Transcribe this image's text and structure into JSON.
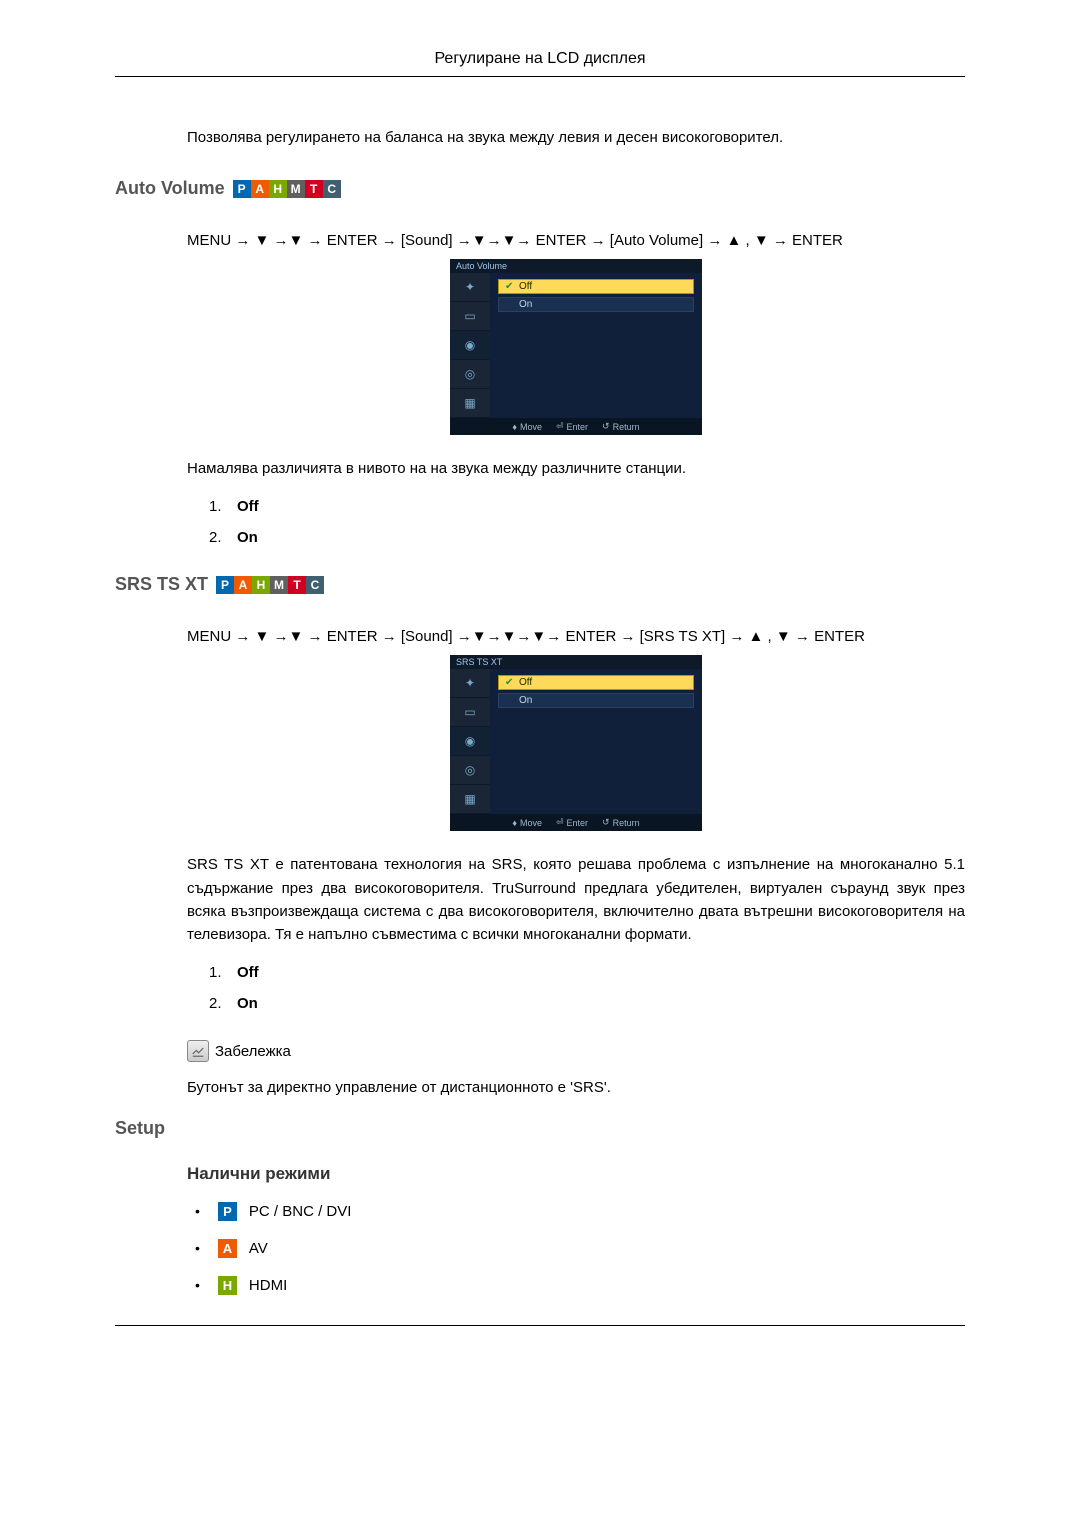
{
  "header": {
    "title": "Регулиране на LCD дисплея"
  },
  "intro": "Позволява регулирането на баланса на звука между левия и десен високоговорител.",
  "badges": {
    "P": "#0068b0",
    "A": "#f05a00",
    "H": "#7aa800",
    "M": "#606060",
    "T": "#d00020",
    "C": "#406070"
  },
  "section1": {
    "title": "Auto Volume",
    "path": "MENU → ▼ →▼ → ENTER → [Sound] →▼→▼→ ENTER → [Auto Volume] → ▲ , ▼ → ENTER",
    "osd": {
      "title": "Auto Volume",
      "options": [
        {
          "label": "Off",
          "selected": true
        },
        {
          "label": "On",
          "selected": false
        }
      ],
      "footer": {
        "move": "Move",
        "enter": "Enter",
        "return": "Return"
      }
    },
    "desc": "Намалява различията в нивото на на звука между различните станции.",
    "list": [
      "Off",
      "On"
    ]
  },
  "section2": {
    "title": "SRS TS XT",
    "path": "MENU → ▼ →▼ → ENTER → [Sound] →▼→▼→▼→ ENTER → [SRS TS XT] → ▲ , ▼ → ENTER",
    "osd": {
      "title": "SRS  TS  XT",
      "options": [
        {
          "label": "Off",
          "selected": true
        },
        {
          "label": "On",
          "selected": false
        }
      ],
      "footer": {
        "move": "Move",
        "enter": "Enter",
        "return": "Return"
      }
    },
    "desc": "SRS TS XT е патентована технология на SRS, която решава проблема с изпълнение на многоканално 5.1 съдържание през два високоговорителя. TruSurround предлага убедителен, виртуален съраунд звук през всяка възпроизвеждаща система с два високоговорителя, включително двата вътрешни високоговорителя на телевизора. Тя е напълно съвместима с всички многоканални формати.",
    "list": [
      "Off",
      "On"
    ],
    "note_label": "Забележка",
    "note_text": "Бутонът за директно управление от дистанционното е 'SRS'."
  },
  "section3": {
    "title": "Setup",
    "sub": "Налични режими",
    "modes": [
      {
        "badge": "P",
        "color": "#0068b0",
        "label": "PC / BNC / DVI"
      },
      {
        "badge": "A",
        "color": "#f05a00",
        "label": "AV"
      },
      {
        "badge": "H",
        "color": "#7aa800",
        "label": "HDMI"
      }
    ]
  }
}
